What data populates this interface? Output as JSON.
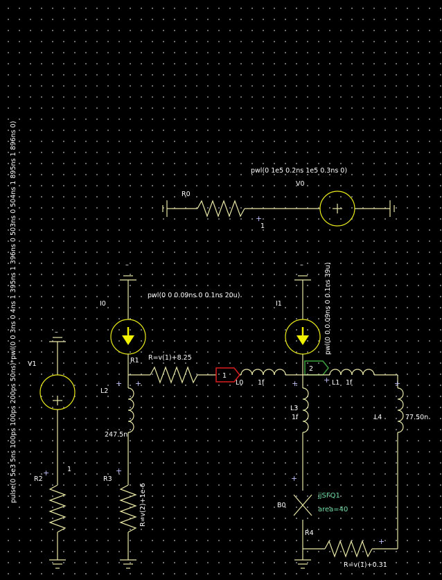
{
  "components": {
    "R0": {
      "name": "R0"
    },
    "V0": {
      "name": "V0",
      "value": "pwl(0 1e5 0.2ns 1e5 0.3ns 0)"
    },
    "V1": {
      "name": "V1",
      "value": "pulse(0 5e3 5ns 100ps 100ps 200ps 50ns)*pwl(0 0 3ns 0 4ns 1 395ns 1 396ns 0 503ns 0 504ns 1 895ns 1 896ns 0)"
    },
    "I0": {
      "name": "I0",
      "value": "pwl(0 0 0.09ns 0 0.1ns 20u)"
    },
    "I1": {
      "name": "I1",
      "value": "pwl(0 0 0.09ns 0 0.1ns 39u)"
    },
    "R1": {
      "name": "R1",
      "value": "R=v(1)+8.25"
    },
    "R2": {
      "name": "R2"
    },
    "R3": {
      "name": "R3",
      "value": "R=v(2)+1e-6"
    },
    "R4": {
      "name": "R4",
      "value": "R=v(1)+0.31"
    },
    "L0": {
      "name": "L0",
      "value": "1f"
    },
    "L1": {
      "name": "L1",
      "value": "1f"
    },
    "L2": {
      "name": "L2",
      "value": "247.5n"
    },
    "L3": {
      "name": "L3",
      "value": "1f"
    },
    "L4": {
      "name": "L4",
      "value": "77.50n"
    },
    "B0": {
      "name": "B0",
      "model": "jjSFQ1",
      "area": "area=40"
    }
  },
  "nets": {
    "node1": "1",
    "node2": "2"
  },
  "marks": {
    "plus": "+",
    "minus": "–",
    "node_r0": "1",
    "node_v1": "1"
  },
  "colors": {
    "background": "#000000",
    "grid_dot": "#7a7a7a",
    "wire": "#e9e8a6",
    "source_circle": "#ecec1a",
    "current_arrow": "#f2f200",
    "label": "#ffffff",
    "plus_marker": "#c0c4ff",
    "junction_label": "#6fe0a8",
    "net_flag_1": "#dd1f1f",
    "net_flag_2": "#3ea23e"
  }
}
